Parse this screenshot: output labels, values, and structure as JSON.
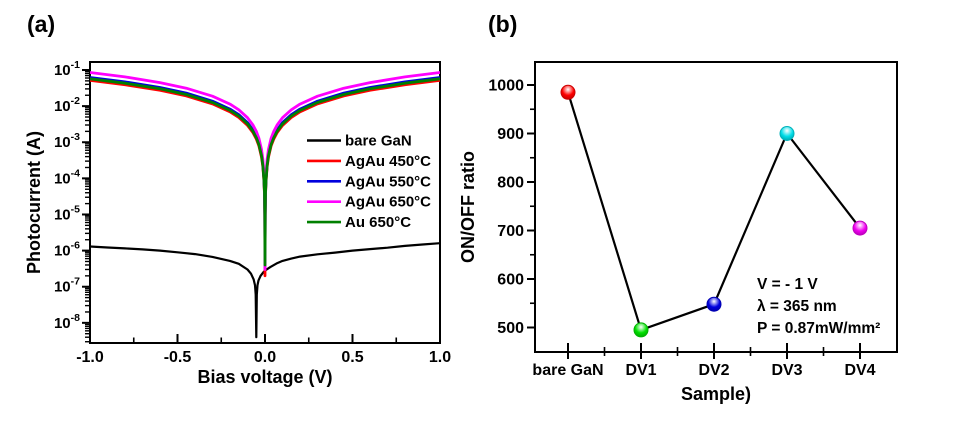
{
  "panels": {
    "a": "(a)",
    "b": "(b)"
  },
  "chart_data": [
    {
      "id": "photocurrent-iv",
      "type": "line",
      "title": "",
      "xlabel": "Bias voltage (V)",
      "ylabel": "Photocurrent (A)",
      "xlim": [
        -1.0,
        1.0
      ],
      "x_ticks": [
        -1.0,
        -0.5,
        0.0,
        0.5,
        1.0
      ],
      "x_tick_labels": [
        "-1.0",
        "-0.5",
        "0.0",
        "0.5",
        "1.0"
      ],
      "x_minor_ticks": [
        -0.75,
        -0.25,
        0.25,
        0.75
      ],
      "yscale": "log",
      "ylim": [
        2.8e-09,
        0.166
      ],
      "y_tick_exponents": [
        -1,
        -2,
        -3,
        -4,
        -5,
        -6,
        -7,
        -8
      ],
      "grid": "off",
      "legend_position": "inside right",
      "legend": {
        "items": [
          {
            "name": "bare GaN",
            "color": "#000000"
          },
          {
            "name": "AgAu 450°C",
            "color": "#ff0000"
          },
          {
            "name": "AgAu 550°C",
            "color": "#0000dd"
          },
          {
            "name": "AgAu 650°C",
            "color": "#ff00ff"
          },
          {
            "name": "Au 650°C",
            "color": "#008000"
          }
        ]
      },
      "series": [
        {
          "name": "bare GaN",
          "color": "#000000",
          "width": 2.2,
          "points": [
            [
              -1,
              1.3e-06
            ],
            [
              -0.9,
              1.22e-06
            ],
            [
              -0.8,
              1.15e-06
            ],
            [
              -0.7,
              1.08e-06
            ],
            [
              -0.6,
              1e-06
            ],
            [
              -0.5,
              9e-07
            ],
            [
              -0.4,
              8e-07
            ],
            [
              -0.3,
              6.7e-07
            ],
            [
              -0.2,
              5.2e-07
            ],
            [
              -0.15,
              4.3e-07
            ],
            [
              -0.1,
              3e-07
            ],
            [
              -0.08,
              2.3e-07
            ],
            [
              -0.065,
              1.6e-07
            ],
            [
              -0.057,
              1.1e-07
            ],
            [
              -0.053,
              6e-08
            ],
            [
              -0.05,
              4e-09
            ],
            [
              -0.047,
              6e-08
            ],
            [
              -0.043,
              1.1e-07
            ],
            [
              -0.037,
              1.5e-07
            ],
            [
              -0.025,
              2e-07
            ],
            [
              -0.01,
              2.5e-07
            ],
            [
              0,
              2.8e-07
            ],
            [
              0.03,
              3.5e-07
            ],
            [
              0.07,
              4.5e-07
            ],
            [
              0.1,
              5.2e-07
            ],
            [
              0.15,
              6e-07
            ],
            [
              0.2,
              6.8e-07
            ],
            [
              0.3,
              7.9e-07
            ],
            [
              0.4,
              8.8e-07
            ],
            [
              0.5,
              1e-06
            ],
            [
              0.6,
              1.1e-06
            ],
            [
              0.7,
              1.2e-06
            ],
            [
              0.8,
              1.35e-06
            ],
            [
              0.9,
              1.48e-06
            ],
            [
              1,
              1.6e-06
            ]
          ]
        },
        {
          "name": "AgAu 450°C",
          "color": "#ff0000",
          "width": 2.8,
          "points": [
            [
              -1,
              0.052
            ],
            [
              -0.8,
              0.0393
            ],
            [
              -0.6,
              0.0275
            ],
            [
              -0.45,
              0.0192
            ],
            [
              -0.3,
              0.0115
            ],
            [
              -0.2,
              0.00695
            ],
            [
              -0.15,
              0.00484
            ],
            [
              -0.1,
              0.00292
            ],
            [
              -0.07,
              0.00187
            ],
            [
              -0.05,
              0.00123
            ],
            [
              -0.035,
              0.00079
            ],
            [
              -0.02,
              0.00039
            ],
            [
              -0.012,
              0.000205
            ],
            [
              -0.006,
              8.7e-05
            ],
            [
              -0.003,
              3.7e-05
            ],
            [
              -0.001,
              9.3e-06
            ],
            [
              0,
              2e-07
            ],
            [
              0.001,
              9.3e-06
            ],
            [
              0.003,
              3.7e-05
            ],
            [
              0.006,
              8.7e-05
            ],
            [
              0.012,
              0.000205
            ],
            [
              0.02,
              0.00039
            ],
            [
              0.035,
              0.00079
            ],
            [
              0.05,
              0.00123
            ],
            [
              0.07,
              0.00187
            ],
            [
              0.1,
              0.00292
            ],
            [
              0.15,
              0.00484
            ],
            [
              0.2,
              0.00695
            ],
            [
              0.3,
              0.0115
            ],
            [
              0.45,
              0.0192
            ],
            [
              0.6,
              0.0275
            ],
            [
              0.8,
              0.0393
            ],
            [
              1,
              0.052
            ]
          ]
        },
        {
          "name": "AgAu 550°C",
          "color": "#0000dd",
          "width": 2.8,
          "points": [
            [
              -1,
              0.062
            ],
            [
              -0.8,
              0.0469
            ],
            [
              -0.6,
              0.0327
            ],
            [
              -0.45,
              0.0229
            ],
            [
              -0.3,
              0.0137
            ],
            [
              -0.2,
              0.00829
            ],
            [
              -0.15,
              0.00577
            ],
            [
              -0.1,
              0.00349
            ],
            [
              -0.07,
              0.00223
            ],
            [
              -0.05,
              0.00147
            ],
            [
              -0.035,
              0.00094
            ],
            [
              -0.02,
              0.000466
            ],
            [
              -0.012,
              0.000245
            ],
            [
              -0.006,
              0.000104
            ],
            [
              -0.003,
              4.4e-05
            ],
            [
              -0.001,
              1.1e-05
            ],
            [
              0,
              3.5e-07
            ],
            [
              0.001,
              1.1e-05
            ],
            [
              0.003,
              4.4e-05
            ],
            [
              0.006,
              0.000104
            ],
            [
              0.012,
              0.000245
            ],
            [
              0.02,
              0.000466
            ],
            [
              0.035,
              0.00094
            ],
            [
              0.05,
              0.00147
            ],
            [
              0.07,
              0.00223
            ],
            [
              0.1,
              0.00349
            ],
            [
              0.15,
              0.00577
            ],
            [
              0.2,
              0.00829
            ],
            [
              0.3,
              0.0137
            ],
            [
              0.45,
              0.0229
            ],
            [
              0.6,
              0.0327
            ],
            [
              0.8,
              0.0469
            ],
            [
              1,
              0.062
            ]
          ]
        },
        {
          "name": "AgAu 650°C",
          "color": "#ff00ff",
          "width": 2.8,
          "points": [
            [
              -1,
              0.085
            ],
            [
              -0.8,
              0.0643
            ],
            [
              -0.6,
              0.0449
            ],
            [
              -0.45,
              0.0313
            ],
            [
              -0.3,
              0.0188
            ],
            [
              -0.2,
              0.0114
            ],
            [
              -0.15,
              0.00791
            ],
            [
              -0.1,
              0.00478
            ],
            [
              -0.07,
              0.00305
            ],
            [
              -0.05,
              0.00201
            ],
            [
              -0.035,
              0.00129
            ],
            [
              -0.02,
              0.000639
            ],
            [
              -0.012,
              0.000336
            ],
            [
              -0.006,
              0.000142
            ],
            [
              -0.003,
              6e-05
            ],
            [
              -0.001,
              1.5e-05
            ],
            [
              0,
              3e-07
            ],
            [
              0.001,
              1.5e-05
            ],
            [
              0.003,
              6e-05
            ],
            [
              0.006,
              0.000142
            ],
            [
              0.012,
              0.000336
            ],
            [
              0.02,
              0.000639
            ],
            [
              0.035,
              0.00129
            ],
            [
              0.05,
              0.00201
            ],
            [
              0.07,
              0.00305
            ],
            [
              0.1,
              0.00478
            ],
            [
              0.15,
              0.00791
            ],
            [
              0.2,
              0.0114
            ],
            [
              0.3,
              0.0188
            ],
            [
              0.45,
              0.0313
            ],
            [
              0.6,
              0.0449
            ],
            [
              0.8,
              0.0643
            ],
            [
              1,
              0.085
            ]
          ]
        },
        {
          "name": "Au 650°C",
          "color": "#008000",
          "width": 2.8,
          "points": [
            [
              -1,
              0.057
            ],
            [
              -0.8,
              0.0431
            ],
            [
              -0.6,
              0.0301
            ],
            [
              -0.45,
              0.021
            ],
            [
              -0.3,
              0.0126
            ],
            [
              -0.2,
              0.00762
            ],
            [
              -0.15,
              0.00531
            ],
            [
              -0.1,
              0.00321
            ],
            [
              -0.07,
              0.00205
            ],
            [
              -0.05,
              0.00135
            ],
            [
              -0.035,
              0.000864
            ],
            [
              -0.02,
              0.000429
            ],
            [
              -0.012,
              0.000225
            ],
            [
              -0.006,
              9.5e-05
            ],
            [
              -0.003,
              4e-05
            ],
            [
              -0.001,
              1e-05
            ],
            [
              0,
              4e-07
            ],
            [
              0.001,
              1e-05
            ],
            [
              0.003,
              4e-05
            ],
            [
              0.006,
              9.5e-05
            ],
            [
              0.012,
              0.000225
            ],
            [
              0.02,
              0.000429
            ],
            [
              0.035,
              0.000864
            ],
            [
              0.05,
              0.00135
            ],
            [
              0.07,
              0.00205
            ],
            [
              0.1,
              0.00321
            ],
            [
              0.15,
              0.00531
            ],
            [
              0.2,
              0.00762
            ],
            [
              0.3,
              0.0126
            ],
            [
              0.45,
              0.021
            ],
            [
              0.6,
              0.0301
            ],
            [
              0.8,
              0.0431
            ],
            [
              1,
              0.057
            ]
          ]
        }
      ]
    },
    {
      "id": "onoff-ratio",
      "type": "scatter",
      "title": "",
      "xlabel": "Sample)",
      "ylabel": "ON/OFF ratio",
      "categories": [
        "bare GaN",
        "DV1",
        "DV2",
        "DV3",
        "DV4"
      ],
      "values": [
        985,
        495,
        548,
        900,
        705
      ],
      "marker_colors": [
        "#ff0000",
        "#00e000",
        "#0000e0",
        "#00dde8",
        "#f000f0"
      ],
      "line_color": "#000000",
      "ylim": [
        450,
        1048
      ],
      "y_ticks": [
        500,
        600,
        700,
        800,
        900,
        1000
      ],
      "y_minor_ticks": [
        450,
        550,
        650,
        750,
        850,
        950
      ],
      "grid": "off",
      "annotation": {
        "lines": [
          "V = - 1 V",
          "λ = 365 nm",
          "P = 0.87mW/mm²"
        ]
      }
    }
  ]
}
